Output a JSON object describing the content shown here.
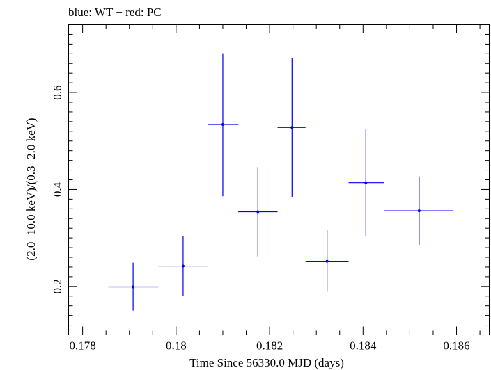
{
  "chart_data": {
    "type": "scatter",
    "title": "blue: WT − red: PC",
    "xlabel": "Time Since 56330.0 MJD (days)",
    "ylabel": "(2.0−10.0 keV)/(0.3−2.0 keV)",
    "xlim": [
      0.1777,
      0.1867
    ],
    "ylim": [
      0.1,
      0.74
    ],
    "xticks": [
      0.178,
      0.18,
      0.182,
      0.184,
      0.186
    ],
    "xtick_labels": [
      "0.178",
      "0.18",
      "0.182",
      "0.184",
      "0.186"
    ],
    "yticks": [
      0.2,
      0.4,
      0.6
    ],
    "ytick_labels": [
      "0.2",
      "0.4",
      "0.6"
    ],
    "grid": false,
    "series": [
      {
        "color": "#0000ee",
        "points": [
          {
            "x": 0.17908,
            "y": 0.199,
            "xerr": [
              0.17855,
              0.17962
            ],
            "yerr": [
              0.15,
              0.249
            ]
          },
          {
            "x": 0.18015,
            "y": 0.242,
            "xerr": [
              0.17962,
              0.18068
            ],
            "yerr": [
              0.181,
              0.304
            ]
          },
          {
            "x": 0.181,
            "y": 0.534,
            "xerr": [
              0.18068,
              0.18133
            ],
            "yerr": [
              0.386,
              0.681
            ]
          },
          {
            "x": 0.18175,
            "y": 0.354,
            "xerr": [
              0.18133,
              0.18217
            ],
            "yerr": [
              0.262,
              0.446
            ]
          },
          {
            "x": 0.18248,
            "y": 0.528,
            "xerr": [
              0.18217,
              0.18277
            ],
            "yerr": [
              0.385,
              0.671
            ]
          },
          {
            "x": 0.18323,
            "y": 0.252,
            "xerr": [
              0.18277,
              0.18369
            ],
            "yerr": [
              0.189,
              0.316
            ]
          },
          {
            "x": 0.18406,
            "y": 0.414,
            "xerr": [
              0.18369,
              0.18445
            ],
            "yerr": [
              0.303,
              0.525
            ]
          },
          {
            "x": 0.1852,
            "y": 0.356,
            "xerr": [
              0.18445,
              0.18593
            ],
            "yerr": [
              0.286,
              0.427
            ]
          }
        ]
      }
    ]
  }
}
